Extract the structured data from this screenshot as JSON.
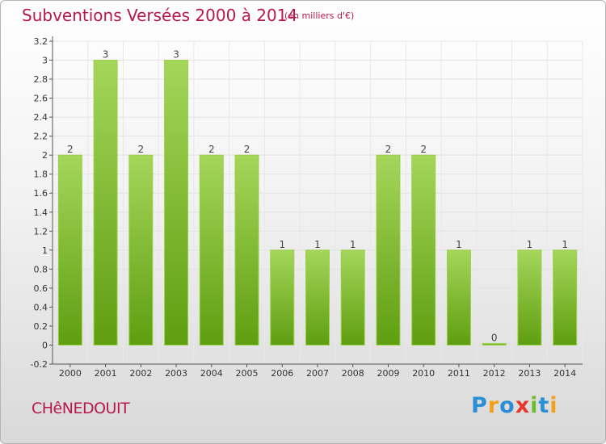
{
  "header": {
    "title": "Subventions Versées 2000 à 2014",
    "subtitle": "(en milliers d'€)"
  },
  "footer": {
    "commune": "CHêNEDOUIT",
    "logo_letters": [
      {
        "char": "P",
        "color": "#2b8fd6"
      },
      {
        "char": "r",
        "color": "#f2a11b"
      },
      {
        "char": "o",
        "color": "#2b8fd6"
      },
      {
        "char": "x",
        "color": "#e7362c"
      },
      {
        "char": "i",
        "color": "#6cbf2a"
      },
      {
        "char": "t",
        "color": "#2b8fd6"
      },
      {
        "char": "i",
        "color": "#f2a11b"
      }
    ]
  },
  "chart_data": {
    "type": "bar",
    "title": "Subventions Versées 2000 à 2014",
    "subtitle": "(en milliers d'€)",
    "categories": [
      "2000",
      "2001",
      "2002",
      "2003",
      "2004",
      "2005",
      "2006",
      "2007",
      "2008",
      "2009",
      "2010",
      "2011",
      "2012",
      "2013",
      "2014"
    ],
    "values": [
      2,
      3,
      2,
      3,
      2,
      2,
      1,
      1,
      1,
      2,
      2,
      1,
      0,
      1,
      1
    ],
    "data_labels": [
      "2",
      "3",
      "2",
      "3",
      "2",
      "2",
      "1",
      "1",
      "1",
      "2",
      "2",
      "1",
      "0",
      "1",
      "1"
    ],
    "y_ticks": [
      "-0.2",
      "0",
      "0.2",
      "0.4",
      "0.6",
      "0.8",
      "1",
      "1.2",
      "1.4",
      "1.6",
      "1.8",
      "2",
      "2.2",
      "2.4",
      "2.6",
      "2.8",
      "3",
      "3.2"
    ],
    "ylim": [
      -0.2,
      3.2
    ],
    "grid": true,
    "legend": "none",
    "colors": {
      "bar_top": "#a4d65a",
      "bar_bottom": "#5f9e10",
      "label": "#444444",
      "axis": "#555555"
    }
  }
}
